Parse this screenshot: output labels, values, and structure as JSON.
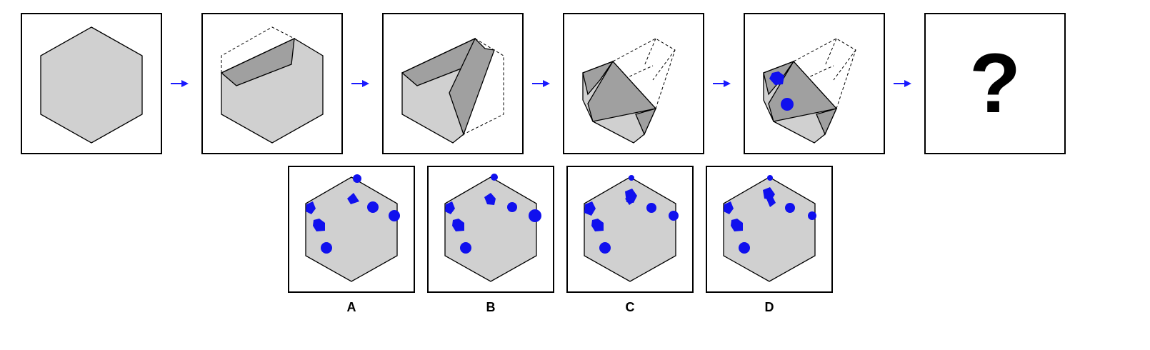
{
  "question_mark": "?",
  "colors": {
    "shape_fill": "#d0d0d0",
    "fold_fill": "#a0a0a0",
    "marker": "#1010ee",
    "arrow": "#1a1aff"
  },
  "icons": [
    "right-arrow-icon",
    "hexagon",
    "circle-hole",
    "pentagon-hole"
  ],
  "options": [
    {
      "label": "A"
    },
    {
      "label": "B"
    },
    {
      "label": "C"
    },
    {
      "label": "D"
    }
  ]
}
